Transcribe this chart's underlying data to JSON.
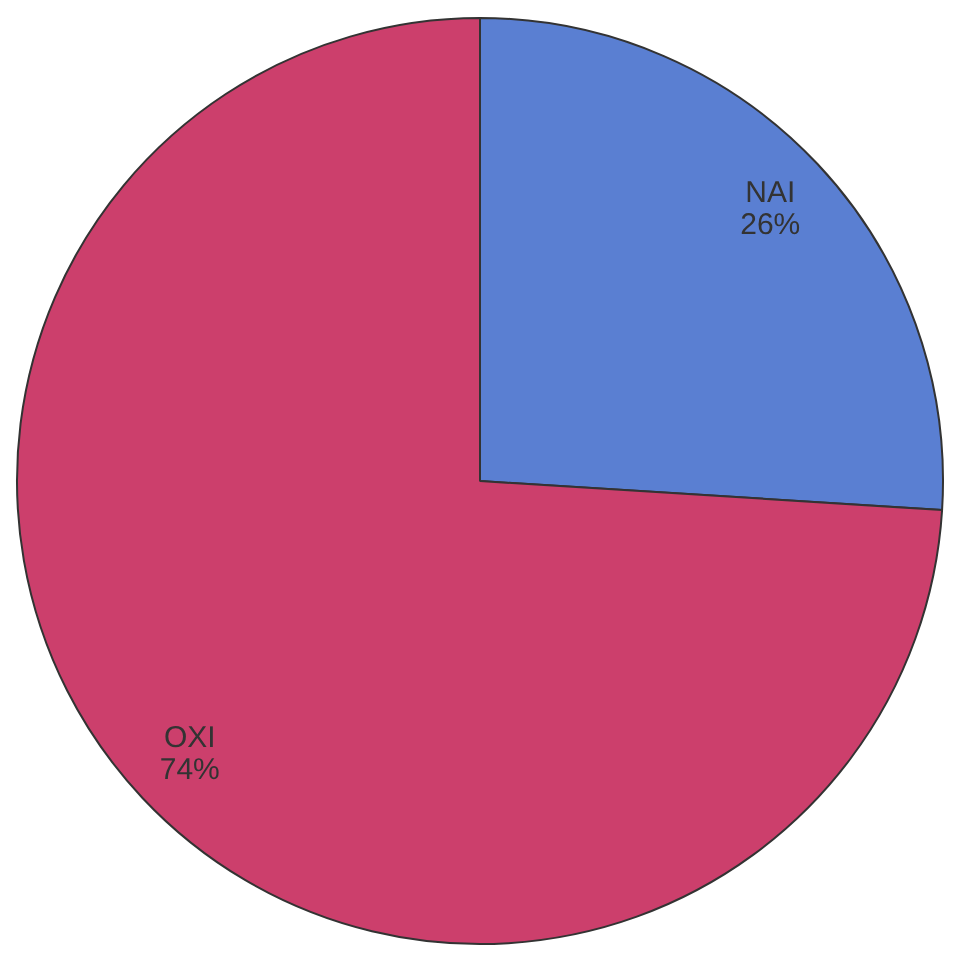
{
  "chart_data": {
    "type": "pie",
    "categories": [
      "NAI",
      "OXI"
    ],
    "values": [
      26,
      74
    ],
    "colors": [
      "#5a7fd2",
      "#cc3f6c"
    ],
    "value_labels": [
      "26%",
      "74%"
    ],
    "legend": false
  }
}
